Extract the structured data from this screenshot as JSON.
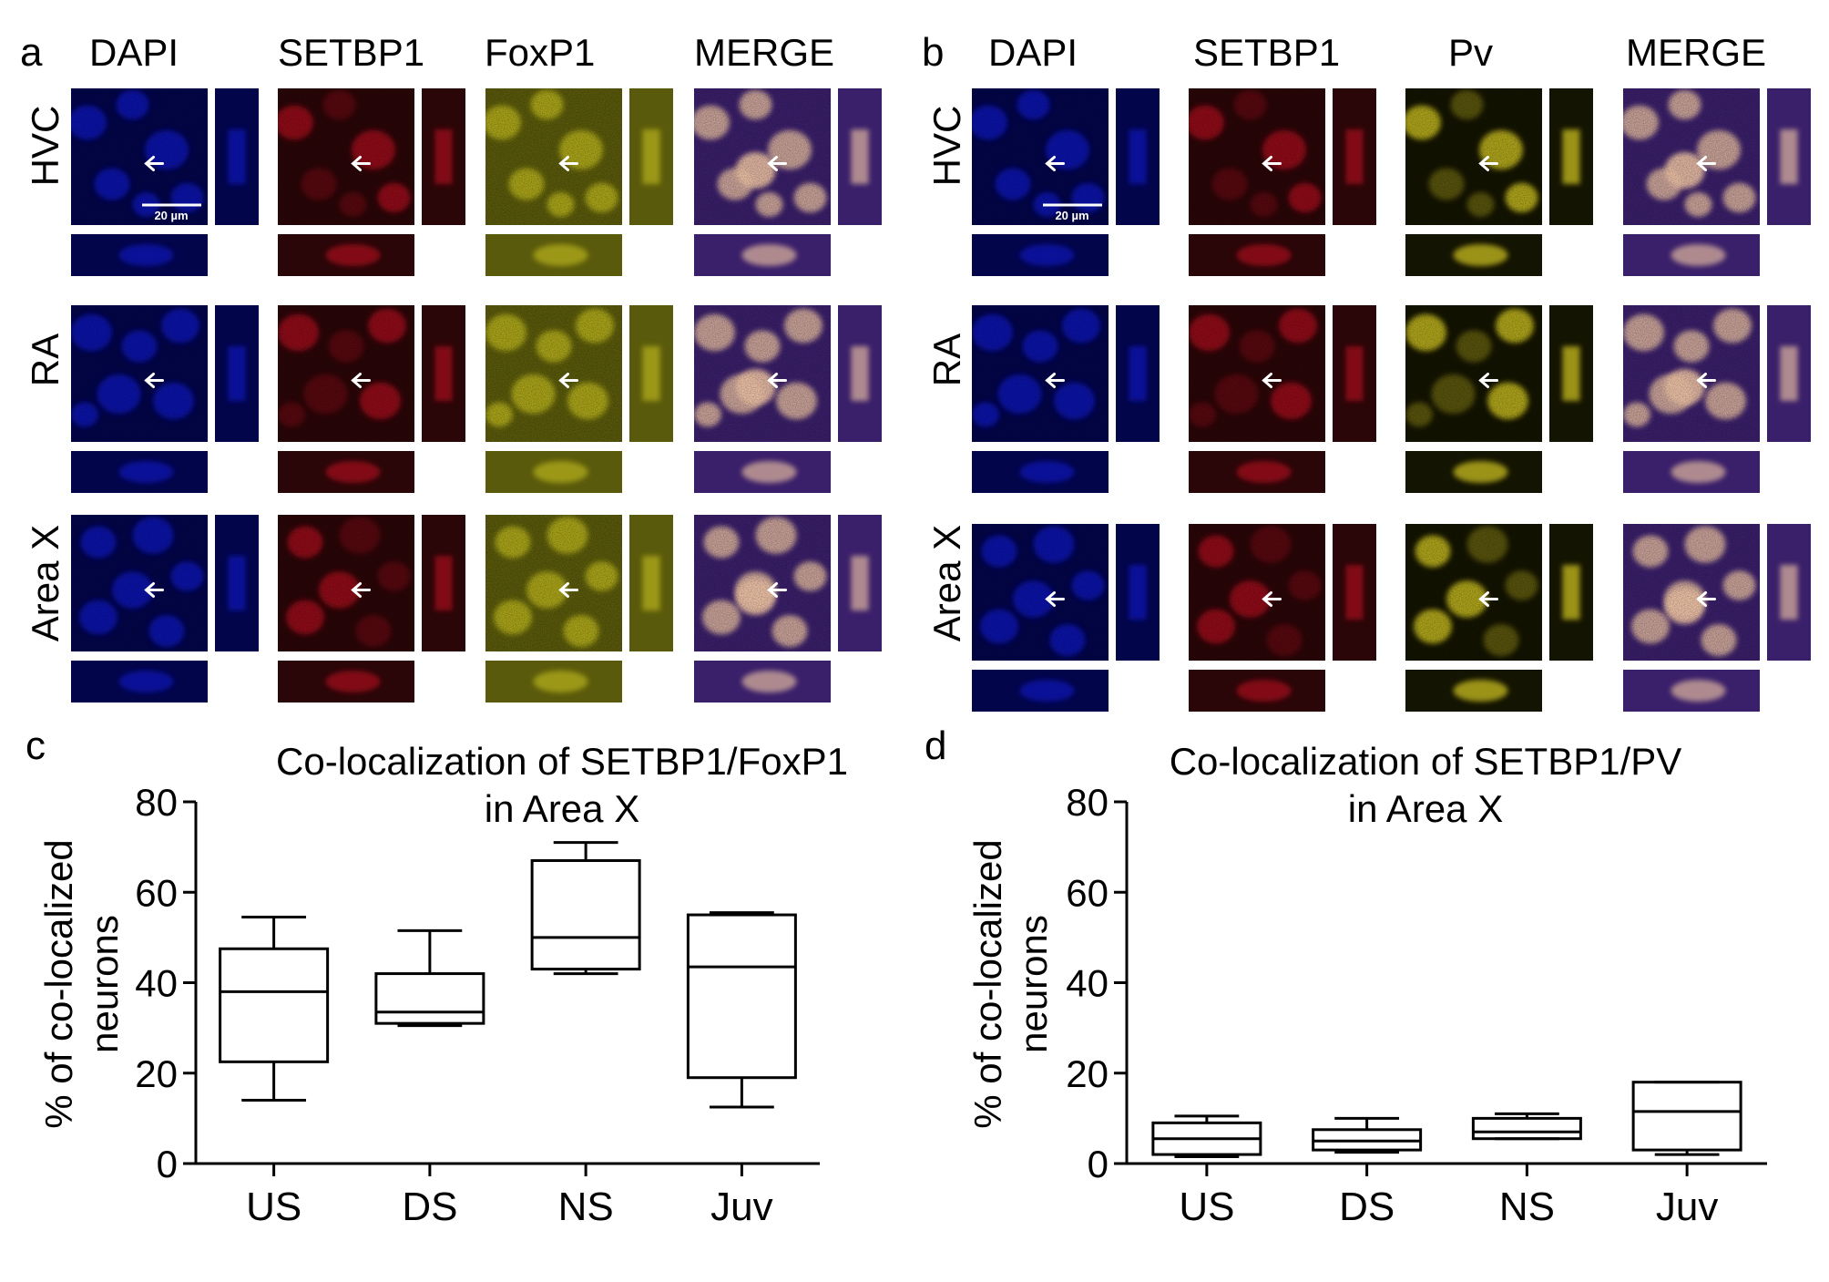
{
  "panel_a": {
    "label": "a",
    "channels": [
      "DAPI",
      "SETBP1",
      "FoxP1",
      "MERGE"
    ],
    "rows": [
      "HVC",
      "RA",
      "Area X"
    ],
    "scale_bar": "20 µm"
  },
  "panel_b": {
    "label": "b",
    "channels": [
      "DAPI",
      "SETBP1",
      "Pv",
      "MERGE"
    ],
    "rows": [
      "HVC",
      "RA",
      "Area X"
    ],
    "scale_bar": "20 µm"
  },
  "colors": {
    "dapi": "#0a12b8",
    "setbp1": "#a8101a",
    "foxp1": "#b8b21a",
    "pv": "#d4c820",
    "merge": "#6a3fa0",
    "arrow": "#ffffff"
  },
  "chart_data": [
    {
      "panel": "c",
      "type": "box",
      "title": "Co-localization of SETBP1/FoxP1",
      "subtitle": "in Area X",
      "ylabel": "% of co-localized neurons",
      "ylabel_lines": [
        "% of co-localized",
        "neurons"
      ],
      "ylim": [
        0,
        80
      ],
      "yticks": [
        "0",
        "20",
        "40",
        "60",
        "80"
      ],
      "categories": [
        "US",
        "DS",
        "NS",
        "Juv"
      ],
      "boxes": [
        {
          "min": 14,
          "q1": 22.5,
          "median": 38,
          "q3": 47.5,
          "max": 54.5
        },
        {
          "min": 30.5,
          "q1": 31,
          "median": 33.5,
          "q3": 42,
          "max": 51.5
        },
        {
          "min": 42,
          "q1": 43,
          "median": 50,
          "q3": 67,
          "max": 71
        },
        {
          "min": 12.5,
          "q1": 19,
          "median": 43.5,
          "q3": 55,
          "max": 55.5
        }
      ]
    },
    {
      "panel": "d",
      "type": "box",
      "title": "Co-localization of SETBP1/PV",
      "subtitle": "in Area X",
      "ylabel": "% of co-localized neurons",
      "ylabel_lines": [
        "% of co-localized",
        "neurons"
      ],
      "ylim": [
        0,
        80
      ],
      "yticks": [
        "0",
        "20",
        "40",
        "60",
        "80"
      ],
      "categories": [
        "US",
        "DS",
        "NS",
        "Juv"
      ],
      "boxes": [
        {
          "min": 1.5,
          "q1": 2,
          "median": 5.5,
          "q3": 9,
          "max": 10.5
        },
        {
          "min": 2.5,
          "q1": 3,
          "median": 5,
          "q3": 7.5,
          "max": 10
        },
        {
          "min": 5.5,
          "q1": 5.5,
          "median": 7,
          "q3": 10,
          "max": 11
        },
        {
          "min": 2,
          "q1": 3,
          "median": 11.5,
          "q3": 18,
          "max": 18
        }
      ]
    }
  ]
}
